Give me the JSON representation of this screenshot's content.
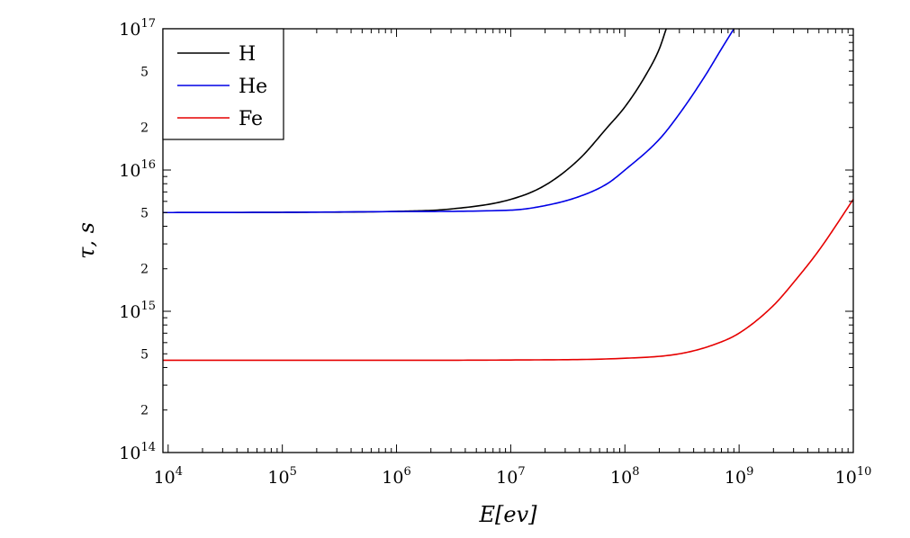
{
  "chart_data": {
    "type": "line",
    "xlabel": "E[ev]",
    "ylabel": "τ, s",
    "xscale": "log",
    "yscale": "log",
    "xlim": [
      9000,
      10000000000.0
    ],
    "ylim": [
      100000000000000.0,
      1e+17
    ],
    "x_ticks": [
      {
        "value": 10000.0,
        "base": "10",
        "exp": "4"
      },
      {
        "value": 100000.0,
        "base": "10",
        "exp": "5"
      },
      {
        "value": 1000000.0,
        "base": "10",
        "exp": "6"
      },
      {
        "value": 10000000.0,
        "base": "10",
        "exp": "7"
      },
      {
        "value": 100000000.0,
        "base": "10",
        "exp": "8"
      },
      {
        "value": 1000000000.0,
        "base": "10",
        "exp": "9"
      },
      {
        "value": 10000000000.0,
        "base": "10",
        "exp": "10"
      }
    ],
    "y_major_ticks": [
      {
        "value": 100000000000000.0,
        "base": "10",
        "exp": "14"
      },
      {
        "value": 1000000000000000.0,
        "base": "10",
        "exp": "15"
      },
      {
        "value": 1e+16,
        "base": "10",
        "exp": "16"
      },
      {
        "value": 1e+17,
        "base": "10",
        "exp": "17"
      }
    ],
    "y_minor_labels": [
      {
        "value": 200000000000000.0,
        "label": "2"
      },
      {
        "value": 500000000000000.0,
        "label": "5"
      },
      {
        "value": 2000000000000000.0,
        "label": "2"
      },
      {
        "value": 5000000000000000.0,
        "label": "5"
      },
      {
        "value": 2e+16,
        "label": "2"
      },
      {
        "value": 5e+16,
        "label": "5"
      }
    ],
    "legend_position": "top-left",
    "grid": false,
    "series": [
      {
        "name": "H",
        "color": "#000000",
        "points": [
          [
            9000,
            5000000000000000.0
          ],
          [
            100000.0,
            5020000000000000.0
          ],
          [
            1000000.0,
            5100000000000000.0
          ],
          [
            3000000.0,
            5300000000000000.0
          ],
          [
            10000000.0,
            6200000000000000.0
          ],
          [
            20000000.0,
            7800000000000000.0
          ],
          [
            40000000.0,
            1.2e+16
          ],
          [
            70000000.0,
            2e+16
          ],
          [
            100000000.0,
            2.8e+16
          ],
          [
            150000000.0,
            4.6e+16
          ],
          [
            200000000.0,
            7.2e+16
          ],
          [
            230000000.0,
            1e+17
          ]
        ]
      },
      {
        "name": "He",
        "color": "#0000e6",
        "points": [
          [
            9000,
            5000000000000000.0
          ],
          [
            100000.0,
            5020000000000000.0
          ],
          [
            1000000.0,
            5080000000000000.0
          ],
          [
            10000000.0,
            5200000000000000.0
          ],
          [
            20000000.0,
            5600000000000000.0
          ],
          [
            40000000.0,
            6500000000000000.0
          ],
          [
            70000000.0,
            8000000000000000.0
          ],
          [
            100000000.0,
            1e+16
          ],
          [
            200000000.0,
            1.65e+16
          ],
          [
            300000000.0,
            2.5e+16
          ],
          [
            500000000.0,
            4.6e+16
          ],
          [
            700000000.0,
            7.2e+16
          ],
          [
            900000000.0,
            1e+17
          ]
        ]
      },
      {
        "name": "Fe",
        "color": "#e60000",
        "points": [
          [
            9000,
            450000000000000.0
          ],
          [
            1000000.0,
            450000000000000.0
          ],
          [
            10000000.0,
            452000000000000.0
          ],
          [
            100000000.0,
            465000000000000.0
          ],
          [
            300000000.0,
            500000000000000.0
          ],
          [
            600000000.0,
            580000000000000.0
          ],
          [
            1000000000.0,
            700000000000000.0
          ],
          [
            2000000000.0,
            1100000000000000.0
          ],
          [
            3000000000.0,
            1600000000000000.0
          ],
          [
            5000000000.0,
            2700000000000000.0
          ],
          [
            10000000000.0,
            6200000000000000.0
          ]
        ]
      }
    ]
  }
}
